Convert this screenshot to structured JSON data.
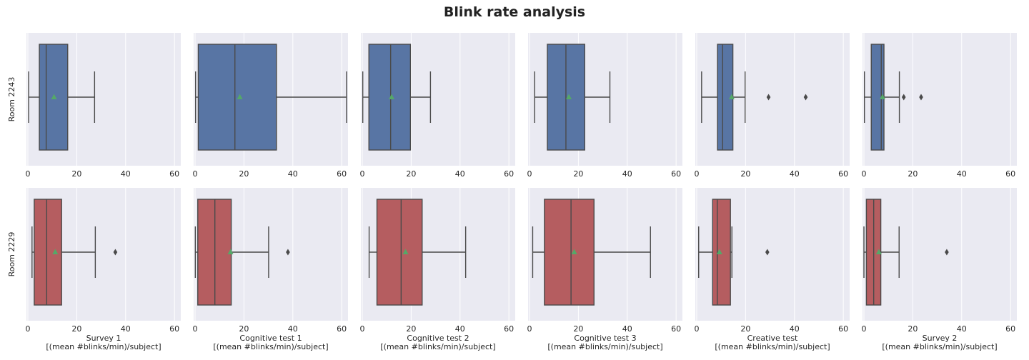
{
  "title": "Blink rate analysis",
  "colors": {
    "room_2243": "#5875a4",
    "room_2229": "#b55d60",
    "mean": "#55a868",
    "line": "#4a4a4a",
    "panel_bg": "#eaeaf2",
    "grid": "#ffffff"
  },
  "chart_data": {
    "type": "box",
    "title": "Blink rate analysis",
    "xlim": [
      0,
      62
    ],
    "xticks": [
      0,
      20,
      40,
      60
    ],
    "grid": true,
    "rows": [
      {
        "label": "Room 2243",
        "color": "#5875a4"
      },
      {
        "label": "Room 2229",
        "color": "#b55d60"
      }
    ],
    "columns": [
      {
        "name": "Survey 1",
        "unit": "[(mean #blinks/min)/subject]"
      },
      {
        "name": "Cognitive test 1",
        "unit": "[(mean #blinks/min)/subject]"
      },
      {
        "name": "Cognitive test 2",
        "unit": "[(mean #blinks/min)/subject]"
      },
      {
        "name": "Cognitive test 3",
        "unit": "[(mean #blinks/min)/subject]"
      },
      {
        "name": "Creative test",
        "unit": "[(mean #blinks/min)/subject]"
      },
      {
        "name": "Survey 2",
        "unit": "[(mean #blinks/min)/subject]"
      }
    ],
    "boxes": [
      [
        {
          "whislo": 0.3,
          "q1": 4.7,
          "med": 7.5,
          "q3": 16.3,
          "whishi": 27.3,
          "mean": 10.7,
          "fliers": []
        },
        {
          "whislo": 0.2,
          "q1": 1.3,
          "med": 16.3,
          "q3": 33.3,
          "whishi": 62,
          "mean": 18.3,
          "fliers": []
        },
        {
          "whislo": 0.2,
          "q1": 2.7,
          "med": 11.6,
          "q3": 19.7,
          "whishi": 27.9,
          "mean": 12.0,
          "fliers": []
        },
        {
          "whislo": 2.1,
          "q1": 7.3,
          "med": 14.9,
          "q3": 22.6,
          "whishi": 32.9,
          "mean": 16.1,
          "fliers": []
        },
        {
          "whislo": 2.0,
          "q1": 8.5,
          "med": 10.6,
          "q3": 14.8,
          "whishi": 19.8,
          "mean": 14.3,
          "fliers": [
            29.4,
            44.6
          ]
        },
        {
          "whislo": 0.2,
          "q1": 3.0,
          "med": 7.1,
          "q3": 8.2,
          "whishi": 14.5,
          "mean": 7.6,
          "fliers": [
            16.3,
            23.4
          ]
        }
      ],
      [
        {
          "whislo": 1.7,
          "q1": 2.6,
          "med": 7.7,
          "q3": 13.8,
          "whishi": 27.6,
          "mean": 11.2,
          "fliers": [
            35.8
          ]
        },
        {
          "whislo": 0.1,
          "q1": 1.1,
          "med": 8.1,
          "q3": 14.8,
          "whishi": 30.1,
          "mean": 14.5,
          "fliers": [
            38.0
          ]
        },
        {
          "whislo": 2.8,
          "q1": 6.0,
          "med": 15.9,
          "q3": 24.5,
          "whishi": 42.3,
          "mean": 17.7,
          "fliers": []
        },
        {
          "whislo": 1.3,
          "q1": 6.1,
          "med": 17.0,
          "q3": 26.4,
          "whishi": 49.5,
          "mean": 18.3,
          "fliers": []
        },
        {
          "whislo": 0.8,
          "q1": 6.5,
          "med": 8.4,
          "q3": 13.8,
          "whishi": 14.4,
          "mean": 9.3,
          "fliers": [
            28.9
          ]
        },
        {
          "whislo": 0.0,
          "q1": 1.0,
          "med": 4.0,
          "q3": 6.9,
          "whishi": 14.4,
          "mean": 6.1,
          "fliers": [
            33.9
          ]
        }
      ]
    ]
  }
}
